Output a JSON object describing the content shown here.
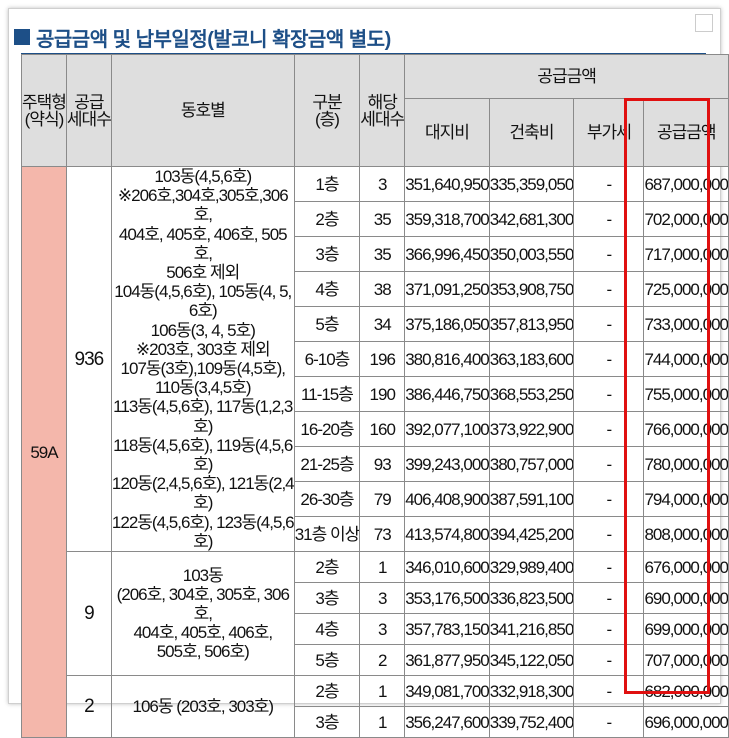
{
  "title": "공급금액 및 납부일정(발코니 확장금액 별도)",
  "headers": {
    "type": [
      "주택형",
      "(약식)"
    ],
    "supply_units": [
      "공급",
      "세대수"
    ],
    "dong": "동호별",
    "floor": [
      "구분",
      "(층)"
    ],
    "applicable_units": [
      "해당",
      "세대수"
    ],
    "supply_amount": "공급금액",
    "land": "대지비",
    "building": "건축비",
    "vat": "부가세",
    "total": "공급금액"
  },
  "type": "59A",
  "groups": [
    {
      "supply_units": "936",
      "dong_lines": [
        "103동(4,5,6호)",
        "※206호,304호,305호,306호,",
        "404호, 405호, 406호, 505호,",
        "506호 제외",
        "104동(4,5,6호), 105동(4, 5, 6호)",
        "106동(3, 4, 5호)",
        "※203호, 303호 제외",
        "107동(3호),109동(4,5호),",
        "110동(3,4,5호)",
        "113동(4,5,6호), 117동(1,2,3호)",
        "118동(4,5,6호), 119동(4,5,6호)",
        "120동(2,4,5,6호), 121동(2,4호)",
        "122동(4,5,6호), 123동(4,5,6호)"
      ],
      "rows": [
        {
          "floor": "1층",
          "units": "3",
          "land": "351,640,950",
          "building": "335,359,050",
          "vat": "-",
          "total": "687,000,000"
        },
        {
          "floor": "2층",
          "units": "35",
          "land": "359,318,700",
          "building": "342,681,300",
          "vat": "-",
          "total": "702,000,000"
        },
        {
          "floor": "3층",
          "units": "35",
          "land": "366,996,450",
          "building": "350,003,550",
          "vat": "-",
          "total": "717,000,000"
        },
        {
          "floor": "4층",
          "units": "38",
          "land": "371,091,250",
          "building": "353,908,750",
          "vat": "-",
          "total": "725,000,000"
        },
        {
          "floor": "5층",
          "units": "34",
          "land": "375,186,050",
          "building": "357,813,950",
          "vat": "-",
          "total": "733,000,000"
        },
        {
          "floor": "6-10층",
          "units": "196",
          "land": "380,816,400",
          "building": "363,183,600",
          "vat": "-",
          "total": "744,000,000"
        },
        {
          "floor": "11-15층",
          "units": "190",
          "land": "386,446,750",
          "building": "368,553,250",
          "vat": "-",
          "total": "755,000,000"
        },
        {
          "floor": "16-20층",
          "units": "160",
          "land": "392,077,100",
          "building": "373,922,900",
          "vat": "-",
          "total": "766,000,000"
        },
        {
          "floor": "21-25층",
          "units": "93",
          "land": "399,243,000",
          "building": "380,757,000",
          "vat": "-",
          "total": "780,000,000"
        },
        {
          "floor": "26-30층",
          "units": "79",
          "land": "406,408,900",
          "building": "387,591,100",
          "vat": "-",
          "total": "794,000,000"
        },
        {
          "floor": "31층 이상",
          "units": "73",
          "land": "413,574,800",
          "building": "394,425,200",
          "vat": "-",
          "total": "808,000,000"
        }
      ]
    },
    {
      "supply_units": "9",
      "dong_lines": [
        "103동",
        "(206호, 304호, 305호, 306호,",
        "404호, 405호, 406호,",
        "505호, 506호)"
      ],
      "rows": [
        {
          "floor": "2층",
          "units": "1",
          "land": "346,010,600",
          "building": "329,989,400",
          "vat": "-",
          "total": "676,000,000"
        },
        {
          "floor": "3층",
          "units": "3",
          "land": "353,176,500",
          "building": "336,823,500",
          "vat": "-",
          "total": "690,000,000"
        },
        {
          "floor": "4층",
          "units": "3",
          "land": "357,783,150",
          "building": "341,216,850",
          "vat": "-",
          "total": "699,000,000"
        },
        {
          "floor": "5층",
          "units": "2",
          "land": "361,877,950",
          "building": "345,122,050",
          "vat": "-",
          "total": "707,000,000"
        }
      ]
    },
    {
      "supply_units": "2",
      "dong_lines": [
        "106동 (203호, 303호)"
      ],
      "rows": [
        {
          "floor": "2층",
          "units": "1",
          "land": "349,081,700",
          "building": "332,918,300",
          "vat": "-",
          "total": "682,000,000"
        },
        {
          "floor": "3층",
          "units": "1",
          "land": "356,247,600",
          "building": "339,752,400",
          "vat": "-",
          "total": "696,000,000"
        }
      ]
    }
  ]
}
